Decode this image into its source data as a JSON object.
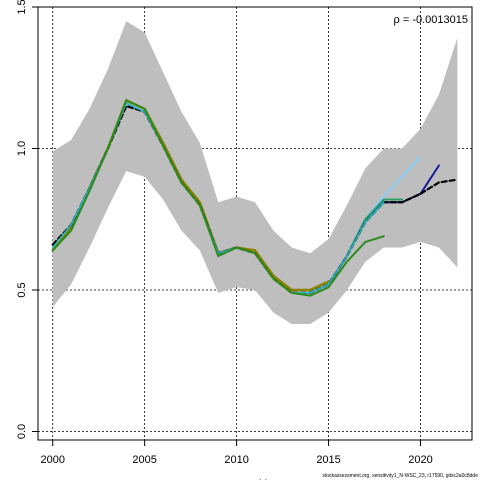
{
  "chart_data": {
    "type": "line",
    "title": "",
    "xlabel": "Y",
    "ylabel": "",
    "xlim": [
      1999.2,
      2022.8
    ],
    "ylim": [
      -0.03,
      1.5
    ],
    "grid": true,
    "x_ticks": [
      2000,
      2005,
      2010,
      2015,
      2020
    ],
    "y_ticks": [
      0.0,
      0.5,
      1.0,
      1.5
    ],
    "y_tick_labels": [
      "0.0",
      "0.5",
      "1.0",
      "1.5"
    ],
    "annotation": "ρ = -0.0013015",
    "credit": "stockassessment.org, sensitivity1_N-WSC_23, r17590, gitsc2a0c8dde",
    "confidence_band": {
      "x": [
        2000,
        2001,
        2002,
        2003,
        2004,
        2005,
        2006,
        2007,
        2008,
        2009,
        2010,
        2011,
        2012,
        2013,
        2014,
        2015,
        2016,
        2017,
        2018,
        2019,
        2020,
        2021,
        2022
      ],
      "upper": [
        0.99,
        1.03,
        1.14,
        1.28,
        1.45,
        1.41,
        1.27,
        1.13,
        1.02,
        0.81,
        0.83,
        0.81,
        0.71,
        0.65,
        0.63,
        0.68,
        0.8,
        0.93,
        1.0,
        1.0,
        1.07,
        1.19,
        1.39
      ],
      "lower": [
        0.44,
        0.52,
        0.65,
        0.79,
        0.92,
        0.9,
        0.82,
        0.71,
        0.64,
        0.49,
        0.51,
        0.5,
        0.42,
        0.38,
        0.38,
        0.42,
        0.5,
        0.6,
        0.65,
        0.65,
        0.67,
        0.65,
        0.58
      ]
    },
    "series": [
      {
        "color": "#8a8200",
        "width": 2.5,
        "dash": "",
        "x": [
          2000,
          2001,
          2002,
          2003,
          2004,
          2005,
          2006,
          2007,
          2008,
          2009,
          2010,
          2011,
          2012,
          2013,
          2014,
          2015
        ],
        "values": [
          0.64,
          0.72,
          0.86,
          1.0,
          1.17,
          1.14,
          1.02,
          0.89,
          0.81,
          0.63,
          0.65,
          0.64,
          0.55,
          0.5,
          0.5,
          0.53
        ]
      },
      {
        "color": "#1a1a9a",
        "width": 2.0,
        "dash": "",
        "x": [
          2015,
          2016,
          2017,
          2018,
          2019,
          2020,
          2021
        ],
        "values": [
          0.52,
          0.62,
          0.75,
          0.81,
          0.81,
          0.84,
          0.94
        ]
      },
      {
        "color": "#87cefa",
        "width": 2.0,
        "dash": "",
        "x": [
          2015,
          2016,
          2017,
          2018,
          2019,
          2020
        ],
        "values": [
          0.52,
          0.62,
          0.75,
          0.83,
          0.9,
          0.97
        ]
      },
      {
        "color": "#2f9f6f",
        "width": 2.0,
        "dash": "",
        "x": [
          2015,
          2016,
          2017,
          2018,
          2019
        ],
        "values": [
          0.52,
          0.62,
          0.75,
          0.82,
          0.82
        ]
      },
      {
        "color": "#000000",
        "width": 2.2,
        "dash": "5,3",
        "x": [
          2000,
          2001,
          2002,
          2003,
          2004,
          2005,
          2006,
          2007,
          2008,
          2009,
          2010,
          2011,
          2012,
          2013,
          2014,
          2015,
          2016,
          2017,
          2018,
          2019,
          2020,
          2021,
          2022
        ],
        "values": [
          0.66,
          0.73,
          0.86,
          1.0,
          1.15,
          1.13,
          1.01,
          0.88,
          0.8,
          0.63,
          0.65,
          0.63,
          0.54,
          0.49,
          0.49,
          0.52,
          0.62,
          0.74,
          0.81,
          0.81,
          0.84,
          0.88,
          0.89
        ]
      },
      {
        "color": "#29b7c9",
        "width": 1.6,
        "dash": "",
        "x": [
          2000,
          2001,
          2002,
          2003,
          2004,
          2005,
          2006,
          2007,
          2008,
          2009,
          2010,
          2011,
          2012,
          2013,
          2014,
          2015,
          2016,
          2017,
          2018
        ],
        "values": [
          0.65,
          0.73,
          0.86,
          1.0,
          1.16,
          1.13,
          1.01,
          0.88,
          0.8,
          0.63,
          0.65,
          0.63,
          0.54,
          0.49,
          0.49,
          0.52,
          0.62,
          0.74,
          0.81
        ]
      },
      {
        "color": "#2e8b1e",
        "width": 2.0,
        "dash": "",
        "x": [
          2000,
          2001,
          2002,
          2003,
          2004,
          2005,
          2006,
          2007,
          2008,
          2009,
          2010,
          2011,
          2012,
          2013,
          2014,
          2015,
          2016,
          2017,
          2018
        ],
        "values": [
          0.64,
          0.71,
          0.85,
          1.0,
          1.17,
          1.14,
          1.01,
          0.88,
          0.8,
          0.62,
          0.65,
          0.63,
          0.54,
          0.49,
          0.48,
          0.51,
          0.6,
          0.67,
          0.69
        ]
      }
    ]
  }
}
